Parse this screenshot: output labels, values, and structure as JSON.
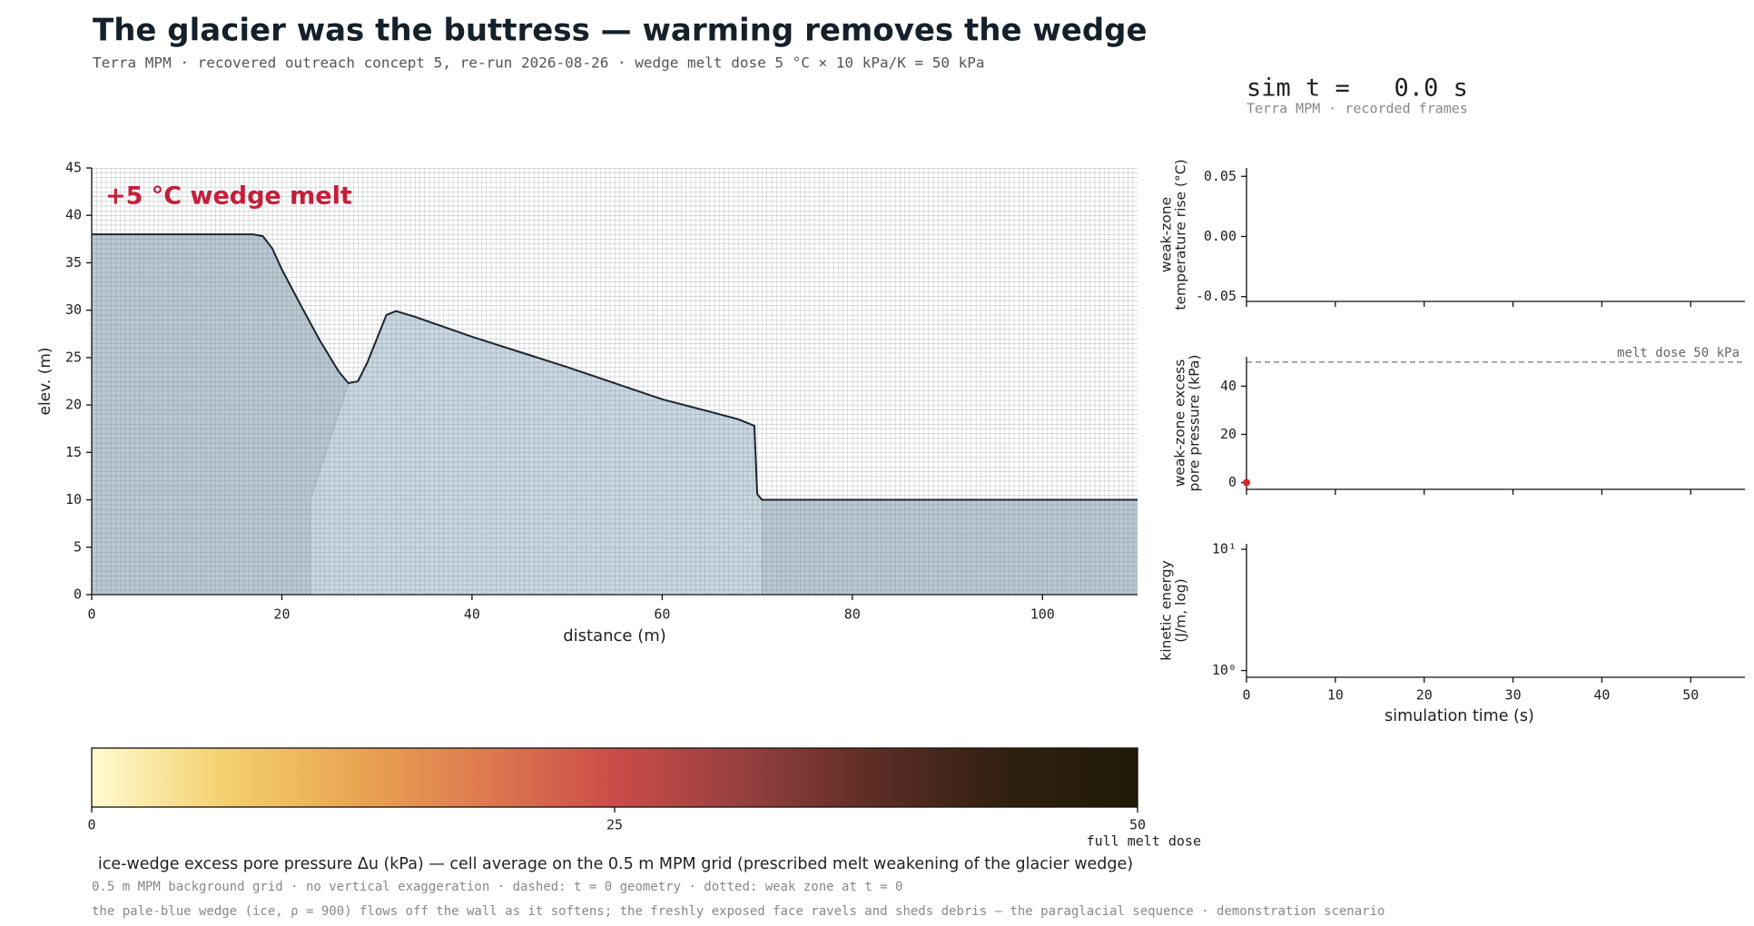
{
  "title": "The glacier was the buttress — warming removes the wedge",
  "subtitle": "Terra MPM · recovered outreach concept 5, re-run 2026-08-26 · wedge melt dose 5 °C × 10 kPa/K = 50 kPa",
  "clock": "sim t =   0.0 s",
  "clock_note": "Terra MPM · recorded frames",
  "footnotes": [
    "0.5 m MPM background grid · no vertical exaggeration · dashed: t = 0 geometry · dotted: weak zone at t = 0",
    "the pale-blue wedge (ice, ρ = 900) flows off the wall as it softens; the freshly exposed face ravels and sheds debris — the paraglacial sequence · demonstration scenario"
  ],
  "chart_data": [
    {
      "type": "area",
      "xlabel": "distance (m)",
      "ylabel": "elev. (m)",
      "annotation": "+5 °C wedge melt",
      "xlim": [
        0,
        110
      ],
      "ylim": [
        0,
        45
      ],
      "xticks": [
        0,
        20,
        40,
        60,
        80,
        100
      ],
      "yticks": [
        0,
        5,
        10,
        15,
        20,
        25,
        30,
        35,
        40,
        45
      ],
      "series": [
        {
          "color": "#b9c8d2",
          "x": [
            0,
            17,
            18,
            19,
            20,
            22,
            24,
            26,
            27,
            28,
            29,
            30,
            31,
            32,
            34,
            36,
            40,
            45,
            50,
            55,
            60,
            65,
            68,
            69.7,
            70,
            70.5,
            110
          ],
          "values": [
            38,
            38,
            37.8,
            36.5,
            34.3,
            30.5,
            26.8,
            23.5,
            22.3,
            22.5,
            24.5,
            27,
            29.5,
            29.9,
            29.3,
            28.6,
            27.2,
            25.6,
            24,
            22.3,
            20.6,
            19.3,
            18.5,
            17.8,
            10.6,
            10,
            10
          ]
        },
        {
          "color": "#c9d7e1",
          "x": [
            23,
            27,
            28,
            29,
            30,
            31,
            32,
            34,
            36,
            40,
            45,
            50,
            55,
            60,
            65,
            68,
            69.7,
            70,
            70.5
          ],
          "values": [
            10,
            22.3,
            22.5,
            24.5,
            27,
            29.5,
            29.9,
            29.3,
            28.6,
            27.2,
            25.6,
            24,
            22.3,
            20.6,
            19.3,
            18.5,
            17.8,
            10.6,
            10
          ]
        }
      ]
    },
    {
      "type": "colorbar",
      "label": "ice-wedge excess pore pressure Δu (kPa) — cell average on the 0.5 m MPM grid (prescribed melt weakening of the glacier wedge)",
      "annotation": "full melt dose",
      "xlim": [
        0,
        50
      ],
      "xticks": [
        0,
        25,
        50
      ],
      "colors": [
        "#fffbd0",
        "#f4d170",
        "#e9a652",
        "#de7a50",
        "#cc4c48",
        "#94403f",
        "#5c2c25",
        "#30200f",
        "#1e1a05"
      ]
    },
    {
      "type": "line",
      "ylabel": [
        "weak-zone",
        "temperature rise (°C)"
      ],
      "xlim": [
        0,
        56.1
      ],
      "ylim": [
        -0.054,
        0.057
      ],
      "xticks": [
        0,
        10,
        20,
        30,
        40,
        50
      ],
      "yticks": [
        -0.05,
        {
          "value": 0,
          "label": "0.00"
        },
        0.05
      ]
    },
    {
      "type": "line",
      "ylabel": [
        "weak-zone excess",
        "pore pressure (kPa)"
      ],
      "xlim": [
        0,
        56.1
      ],
      "ylim": [
        -2.8,
        52.2
      ],
      "xticks": [
        0,
        10,
        20,
        30,
        40,
        50
      ],
      "yticks": [
        0,
        20,
        40
      ],
      "hline": {
        "value": 50,
        "label": "melt dose 50 kPa"
      },
      "series": [
        {
          "color": "#d62728",
          "x": [
            0
          ],
          "values": [
            0
          ]
        }
      ]
    },
    {
      "type": "line",
      "ylabel": [
        "kinetic energy",
        "(J/m, log)"
      ],
      "xlabel": "simulation time (s)",
      "log": true,
      "xlim": [
        0,
        56.1
      ],
      "ylim": [
        0.88,
        11.1
      ],
      "xticks": [
        0,
        10,
        20,
        30,
        40,
        50
      ],
      "yticks": [
        {
          "value": 1,
          "label": "10⁰"
        },
        {
          "value": 10,
          "label": "10¹"
        }
      ]
    }
  ]
}
